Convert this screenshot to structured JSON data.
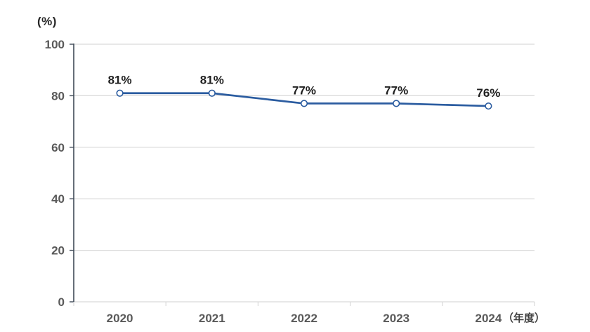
{
  "chart_data": {
    "type": "line",
    "title": "",
    "unit_label": "(%)",
    "x_axis_suffix": "（年度）",
    "categories": [
      "2020",
      "2021",
      "2022",
      "2023",
      "2024"
    ],
    "series": [
      {
        "name": "rate",
        "values": [
          81,
          81,
          77,
          77,
          76
        ]
      }
    ],
    "data_labels": [
      "81%",
      "81%",
      "77%",
      "77%",
      "76%"
    ],
    "ylim": [
      0,
      100
    ],
    "yticks": [
      0,
      20,
      40,
      60,
      80,
      100
    ],
    "grid": true,
    "legend": "none",
    "colors": {
      "line": "#2b5ca0",
      "marker_fill": "#ffffff",
      "marker_stroke": "#2b5ca0",
      "gridline": "#d9d9d9",
      "y_axis": "#3f4a57",
      "x_axis": "#d9d9d9",
      "tick_label": "#595959",
      "data_label": "#1f1f1f",
      "background": "#ffffff"
    }
  }
}
